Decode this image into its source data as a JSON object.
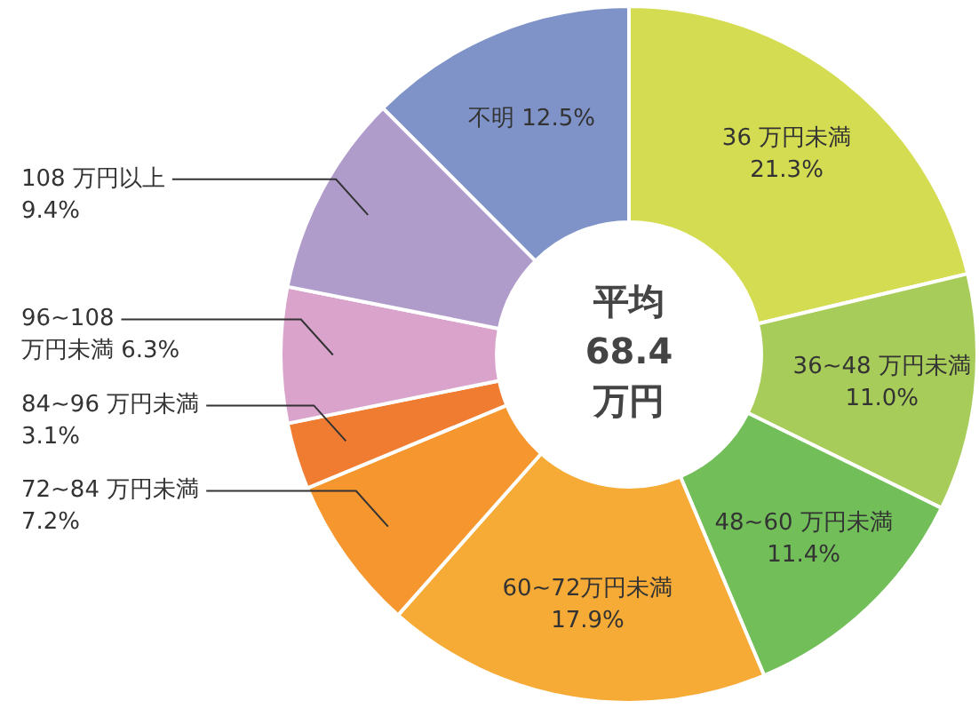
{
  "chart_data": {
    "type": "donut",
    "categories": [
      "36 万円未満",
      "36~48 万円未満",
      "48~60 万円未満",
      "60~72万円未満",
      "72~84 万円未満",
      "84~96 万円未満",
      "96~108 万円未満",
      "108 万円以上",
      "不明"
    ],
    "values": [
      21.3,
      11.0,
      11.4,
      17.9,
      7.2,
      3.1,
      6.3,
      9.4,
      12.5
    ],
    "colors": [
      "#d4dc52",
      "#a8cc5a",
      "#72bf5a",
      "#f5ab35",
      "#f5962f",
      "#ef7c30",
      "#d9a3cb",
      "#b09ccb",
      "#7f93c9"
    ],
    "value_labels": [
      "21.3%",
      "11.0%",
      "11.4%",
      "17.9%",
      "7.2%",
      "3.1%",
      "6.3%",
      "9.4%",
      "12.5%"
    ],
    "legend": false,
    "annotations": [
      "平均 68.4 万円"
    ]
  }
}
